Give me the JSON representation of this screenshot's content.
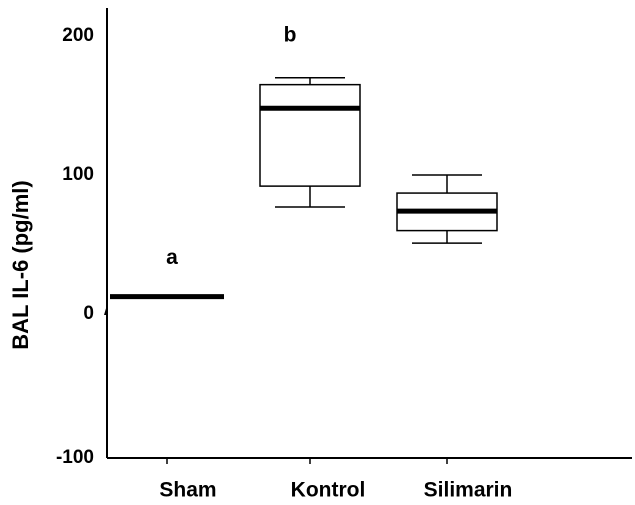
{
  "chart_data": {
    "type": "box",
    "title": "",
    "xlabel": "",
    "ylabel": "BAL IL-6 (pg/ml)",
    "ylim": [
      -110,
      225
    ],
    "yticks": [
      200,
      100,
      0,
      -100
    ],
    "ytick_labels": [
      "200",
      "100",
      "0",
      "-100"
    ],
    "grid": false,
    "legend": "none",
    "categories": [
      "Sham",
      "Kontrol",
      "Silimarin"
    ],
    "boxes": [
      {
        "category": "Sham",
        "whisker_low": 12.5,
        "q1": 12.5,
        "median": 12.5,
        "q3": 12.5,
        "whisker_high": 12.5,
        "group_letter": "a"
      },
      {
        "category": "Kontrol",
        "whisker_low": 77,
        "q1": 92,
        "median": 148,
        "q3": 165,
        "whisker_high": 170,
        "group_letter": "b"
      },
      {
        "category": "Silimarin",
        "whisker_low": 51,
        "q1": 60,
        "median": 74,
        "q3": 87,
        "whisker_high": 100,
        "group_letter": ""
      }
    ],
    "colors": {
      "line": "#000000",
      "box_fill": "#ffffff",
      "background": "#ffffff"
    }
  }
}
